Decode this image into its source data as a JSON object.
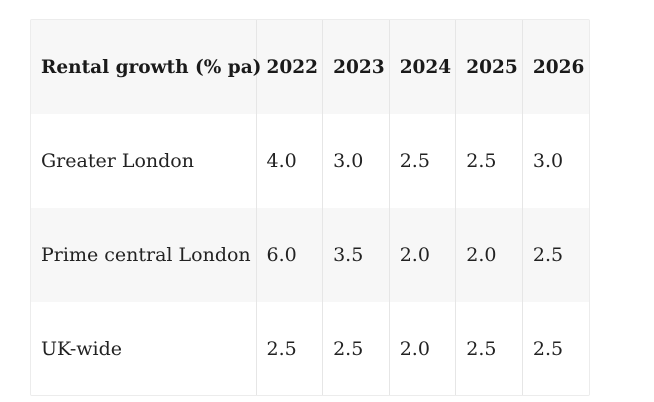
{
  "table": {
    "headers": [
      "Rental growth (% pa)",
      "2022",
      "2023",
      "2024",
      "2025",
      "2026"
    ],
    "rows": [
      {
        "label": "Greater London",
        "values": [
          "4.0",
          "3.0",
          "2.5",
          "2.5",
          "3.0"
        ]
      },
      {
        "label": "Prime central London",
        "values": [
          "6.0",
          "3.5",
          "2.0",
          "2.0",
          "2.5"
        ]
      },
      {
        "label": "UK-wide",
        "values": [
          "2.5",
          "2.5",
          "2.0",
          "2.5",
          "2.5"
        ]
      }
    ]
  }
}
